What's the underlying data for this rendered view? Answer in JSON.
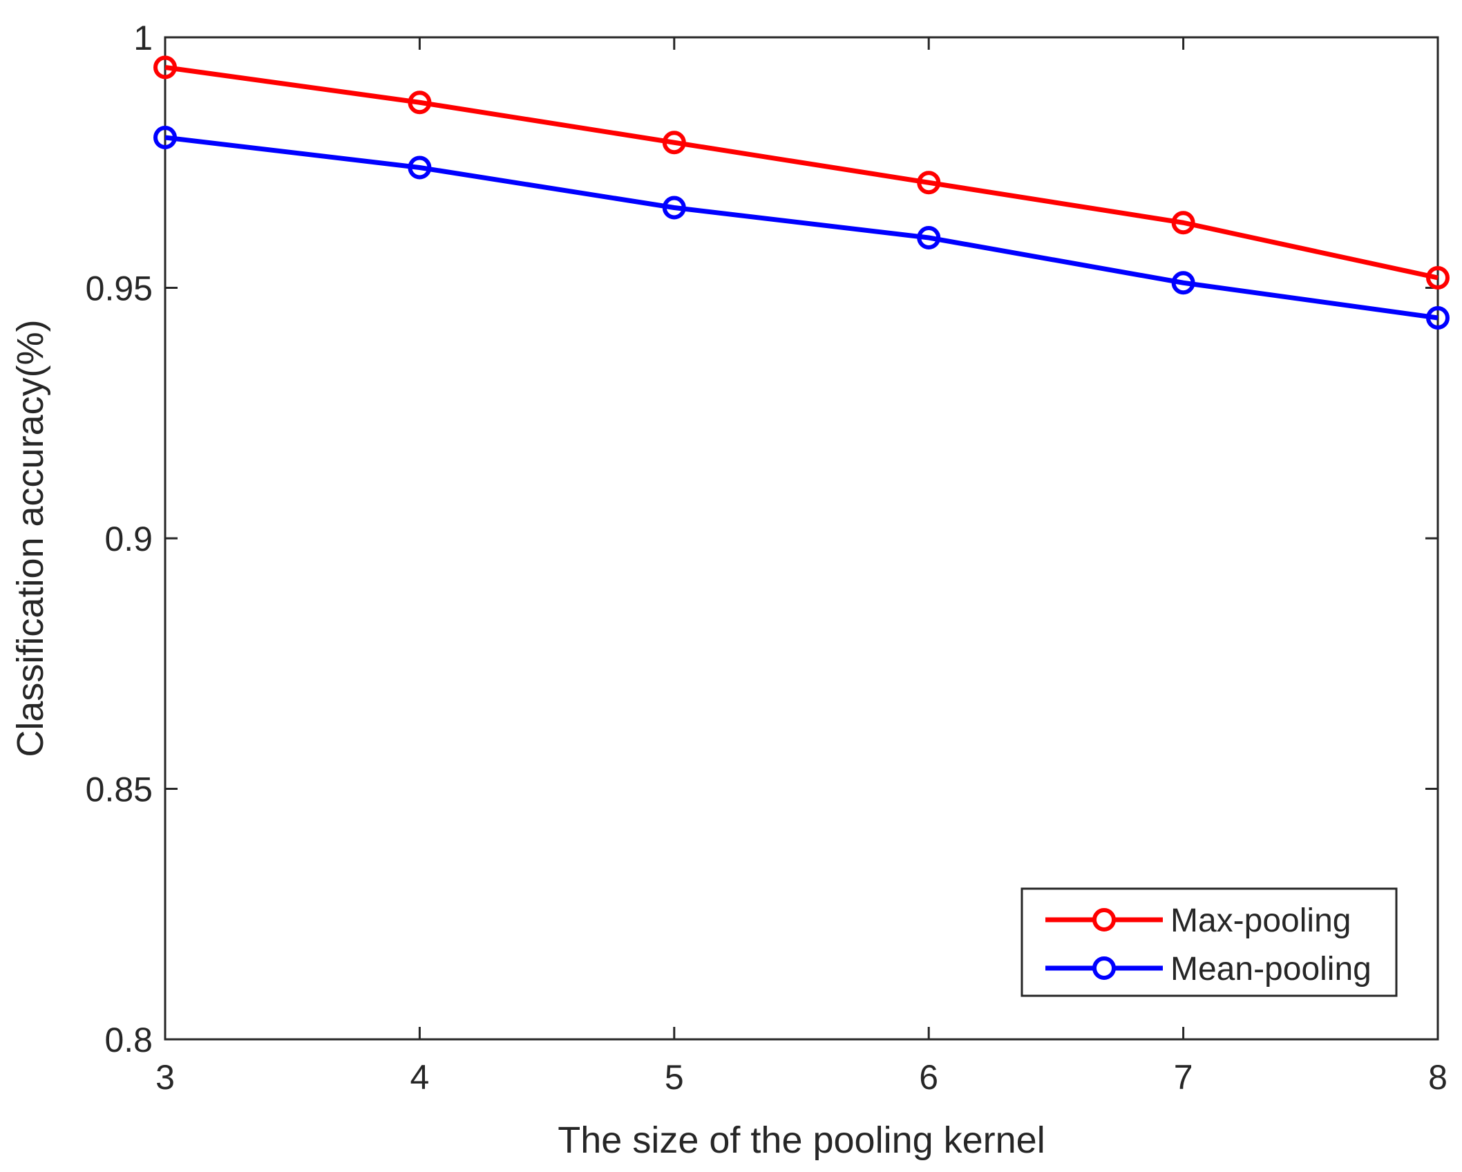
{
  "chart_data": {
    "type": "line",
    "xlabel": "The size of the pooling kernel",
    "ylabel": "Classification accuracy(%)",
    "x": [
      3,
      4,
      5,
      6,
      7,
      8
    ],
    "xlim": [
      3,
      8
    ],
    "ylim": [
      0.8,
      1
    ],
    "x_ticks": [
      "3",
      "4",
      "5",
      "6",
      "7",
      "8"
    ],
    "y_ticks": [
      "0.8",
      "0.85",
      "0.9",
      "0.95",
      "1"
    ],
    "y_tick_values": [
      0.8,
      0.85,
      0.9,
      0.95,
      1.0
    ],
    "grid": false,
    "legend_position": "bottom-right",
    "series": [
      {
        "name": "Max-pooling",
        "color": "#ff0000",
        "marker": "circle",
        "values": [
          0.994,
          0.987,
          0.979,
          0.971,
          0.963,
          0.952
        ]
      },
      {
        "name": "Mean-pooling",
        "color": "#0000ff",
        "marker": "circle",
        "values": [
          0.98,
          0.974,
          0.966,
          0.96,
          0.951,
          0.944
        ]
      }
    ]
  }
}
